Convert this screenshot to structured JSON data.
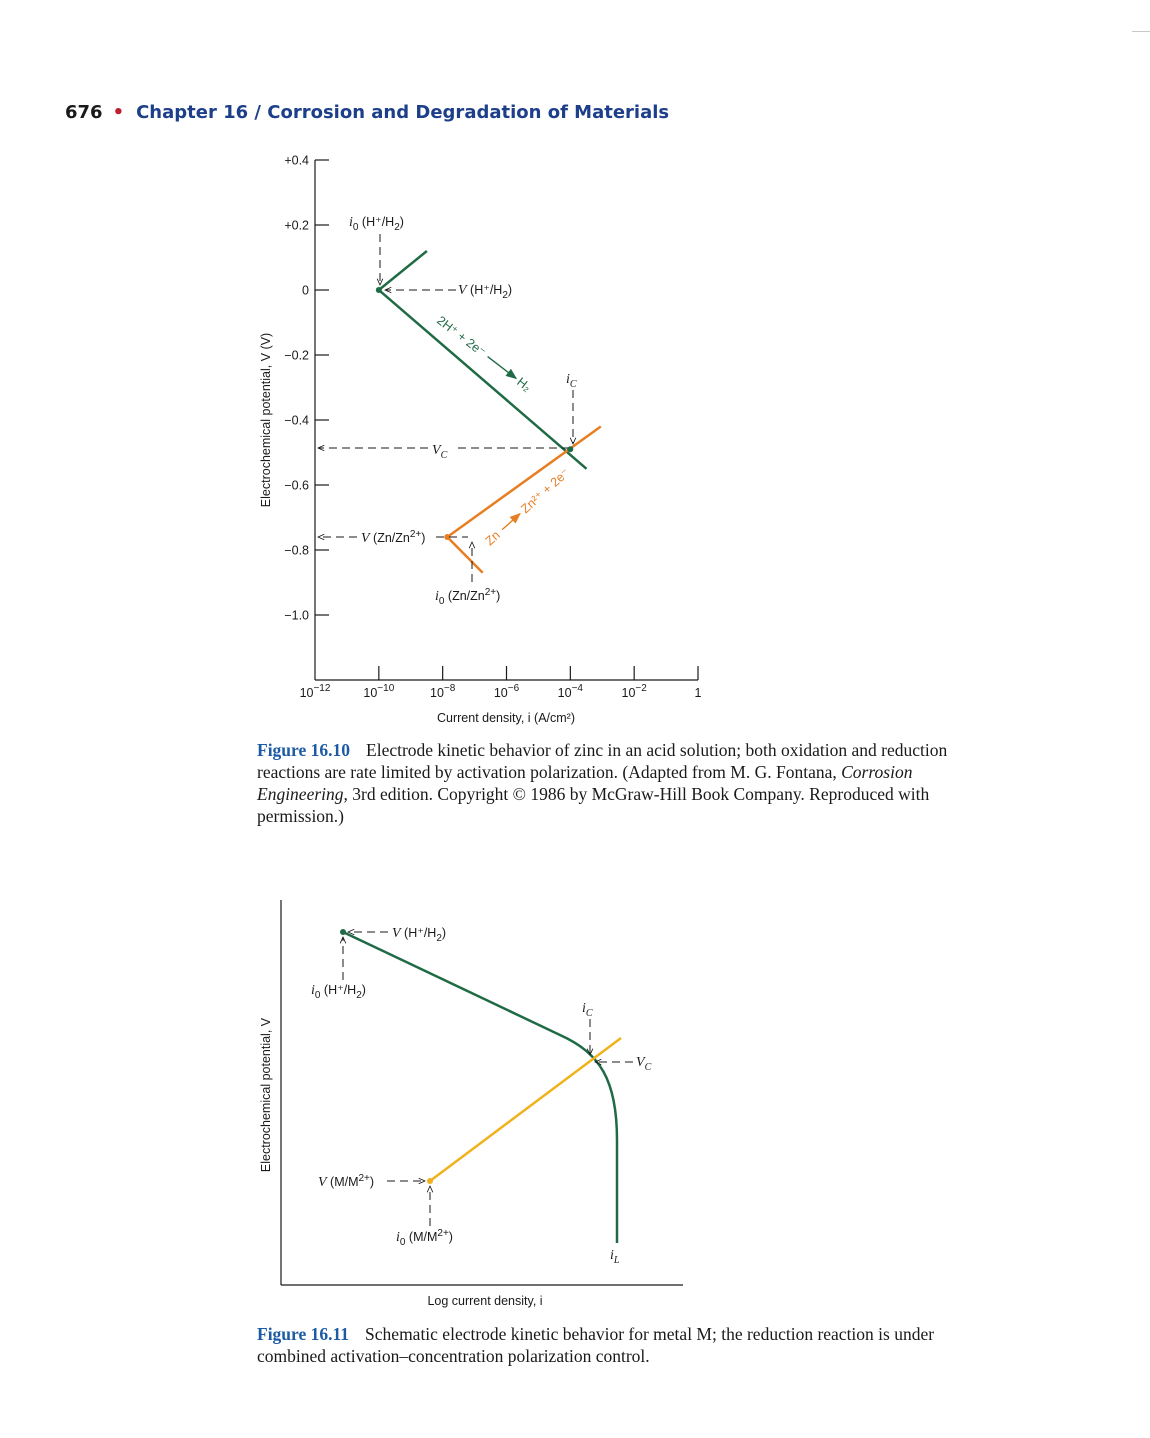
{
  "page": {
    "number": "676",
    "chapter": "Chapter 16  /  Corrosion and Degradation of Materials"
  },
  "figure_16_10": {
    "chart_data": {
      "type": "line",
      "x_scale": "log",
      "xlabel": "Current density, i (A/cm²)",
      "ylabel": "Electrochemical potential, V (V)",
      "xlim": [
        1e-12,
        1
      ],
      "ylim": [
        -1.2,
        0.4
      ],
      "x_ticks": [
        1e-12,
        1e-10,
        1e-08,
        1e-06,
        0.0001,
        0.01,
        1
      ],
      "x_tick_labels": [
        {
          "base": "10",
          "exp": "−12"
        },
        {
          "base": "10",
          "exp": "−10"
        },
        {
          "base": "10",
          "exp": "−8"
        },
        {
          "base": "10",
          "exp": "−6"
        },
        {
          "base": "10",
          "exp": "−4"
        },
        {
          "base": "10",
          "exp": "−2"
        },
        {
          "base": "1",
          "exp": ""
        }
      ],
      "y_ticks": [
        0.4,
        0.2,
        0,
        -0.2,
        -0.4,
        -0.6,
        -0.8,
        -1.0
      ],
      "y_tick_labels": [
        "+0.4",
        "+0.2",
        "0",
        "−0.2",
        "−0.4",
        "−0.6",
        "−0.8",
        "−1.0"
      ],
      "series": [
        {
          "color": "#1f6b45",
          "x": [
            3.2e-09,
            1e-10,
            0.00032
          ],
          "y": [
            0.12,
            0.0,
            -0.55
          ]
        },
        {
          "color": "#e87e22",
          "x": [
            1.8e-07,
            1.4e-08,
            0.0009
          ],
          "y": [
            -0.87,
            -0.76,
            -0.42
          ]
        }
      ],
      "points": [
        {
          "x": 1e-10,
          "y": 0.0,
          "color": "#1f6b45"
        },
        {
          "x": 0.0001,
          "y": -0.49,
          "color": "#1f6b45"
        },
        {
          "x": 1.4e-08,
          "y": -0.76,
          "color": "#e87e22"
        }
      ],
      "annotations": {
        "io_h_base": "i",
        "io_h_sub": "0",
        "io_h_text": " (H⁺/H",
        "io_h_text_sub": "2",
        "io_h_text_end": ")",
        "v_h_v": "V",
        "v_h_text": " (H⁺/H",
        "v_h_sub": "2",
        "v_h_end": ")",
        "reaction_h": "2H⁺ + 2e⁻",
        "reaction_h_prod": "H₂",
        "ic_i": "i",
        "ic_sub": "C",
        "vc_v": "V",
        "vc_sub": "C",
        "v_zn_v": "V",
        "v_zn_text": " (Zn/Zn",
        "v_zn_sup": "2+",
        "v_zn_end": ")",
        "reaction_zn": "Zn",
        "reaction_zn_prod": "Zn²⁺ + 2e⁻",
        "io_zn_base": "i",
        "io_zn_sub": "0",
        "io_zn_text": " (Zn/Zn",
        "io_zn_sup": "2+",
        "io_zn_end": ")"
      }
    },
    "caption": {
      "label": "Figure 16.10",
      "text_1": "Electrode kinetic behavior of zinc in an acid solution; both oxidation and reduction reactions are rate limited by activation polarization. (Adapted from M. G. Fontana, ",
      "italic": "Corrosion Engineering,",
      "text_2": " 3rd edition. Copyright © 1986 by McGraw-Hill Book Company. Reproduced with permission.)"
    }
  },
  "figure_16_11": {
    "chart_data": {
      "type": "line",
      "xlabel": "Log current density, i",
      "ylabel": "Electrochemical potential, V",
      "series": [
        {
          "color": "#1f6b45",
          "shape": "activation–concentration reduction curve"
        },
        {
          "color": "#f0b21c",
          "shape": "activation oxidation line"
        }
      ],
      "annotations": {
        "v_h_v": "V",
        "v_h_text": " (H⁺/H",
        "v_h_sub": "2",
        "v_h_end": ")",
        "io_h_base": "i",
        "io_h_sub": "0",
        "io_h_text": " (H⁺/H",
        "io_h_text_sub": "2",
        "io_h_end": ")",
        "ic_i": "i",
        "ic_sub": "C",
        "vc_v": "V",
        "vc_sub": "C",
        "v_m_v": "V",
        "v_m_text": " (M/M",
        "v_m_sup": "2+",
        "v_m_end": ")",
        "io_m_base": "i",
        "io_m_sub": "0",
        "io_m_text": " (M/M",
        "io_m_sup": "2+",
        "io_m_end": ")",
        "il_i": "i",
        "il_sub": "L"
      }
    },
    "caption": {
      "label": "Figure 16.11",
      "text": "Schematic electrode kinetic behavior for metal M; the reduction reaction is under combined activation–concentration polarization control."
    }
  },
  "colors": {
    "hydrogen": "#1f6b45",
    "zinc": "#e87e22",
    "metal": "#f0b21c",
    "figure_label": "#1d5aa6",
    "chapter": "#1d3f8a",
    "bullet": "#c0202e"
  }
}
